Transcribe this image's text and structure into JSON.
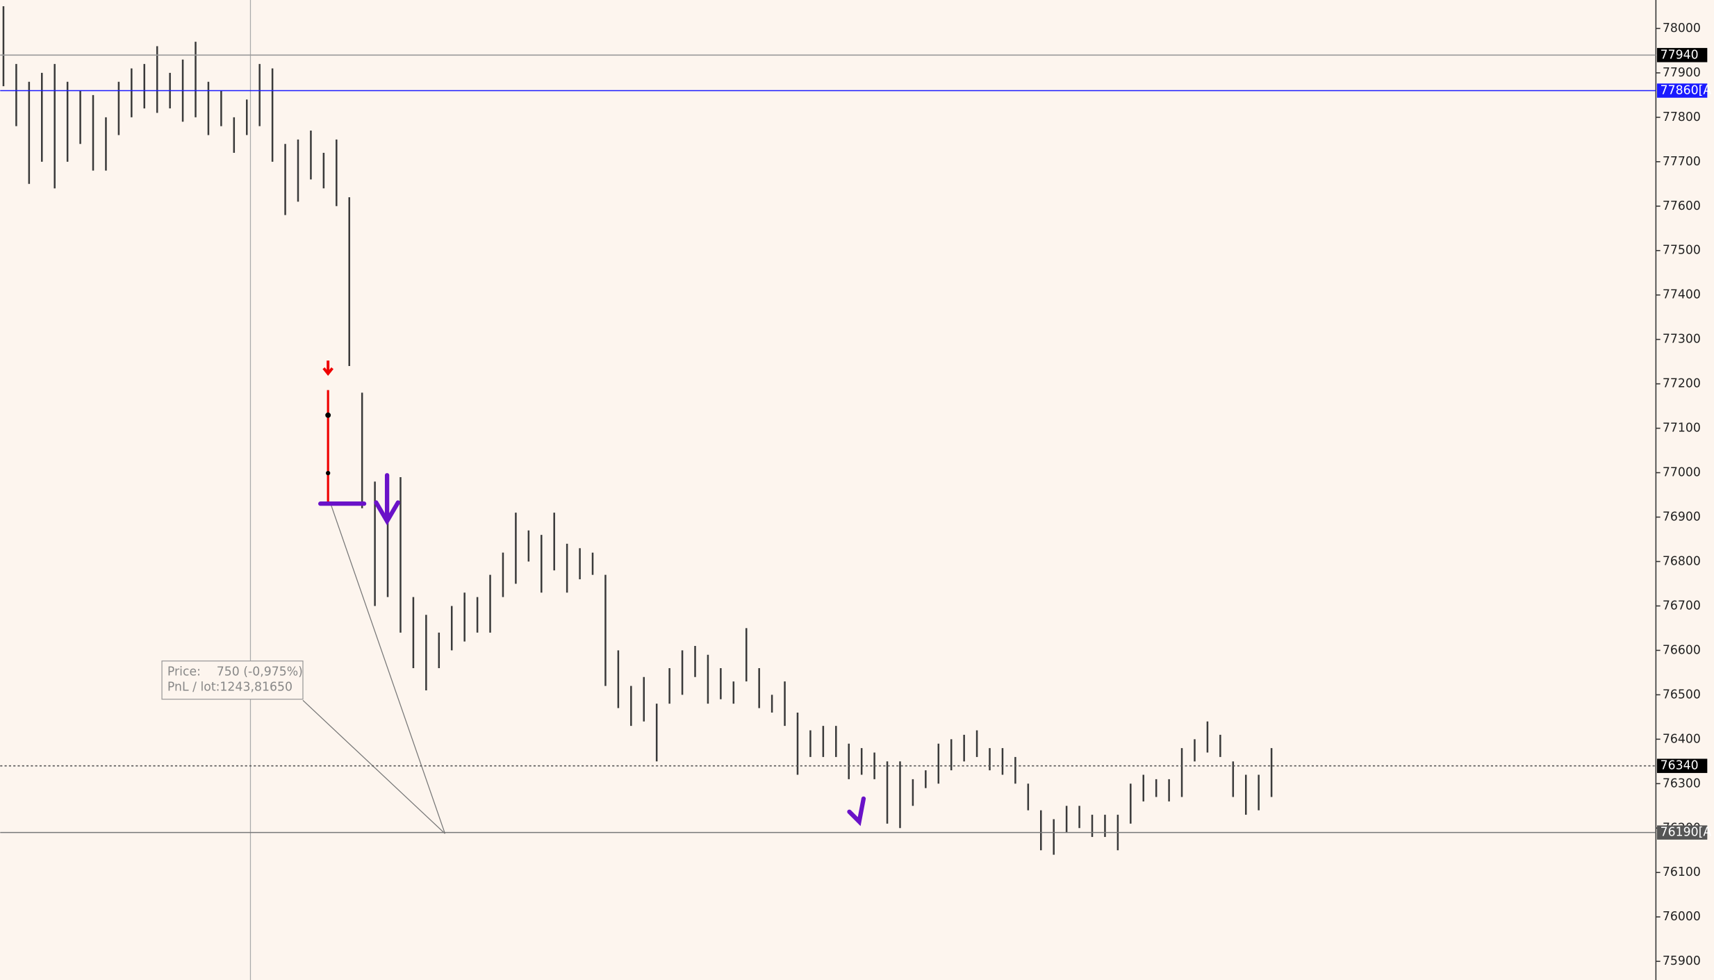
{
  "chart_data": {
    "type": "ohlc",
    "color": "#3a3a3a",
    "ylim": [
      75858,
      78064
    ],
    "yticks": [
      75900,
      76000,
      76100,
      76200,
      76300,
      76400,
      76500,
      76600,
      76700,
      76800,
      76900,
      77000,
      77100,
      77200,
      77300,
      77400,
      77500,
      77600,
      77700,
      77800,
      77900,
      78000
    ],
    "high": [
      78050,
      77920,
      77880,
      77900,
      77920,
      77880,
      77860,
      77850,
      77800,
      77880,
      77910,
      77920,
      77960,
      77900,
      77930,
      77970,
      77880,
      77860,
      77800,
      77840,
      77920,
      77910,
      77740,
      77750,
      77770,
      77720,
      77750,
      77620,
      77180,
      76980,
      76950,
      76990,
      76720,
      76680,
      76640,
      76700,
      76730,
      76720,
      76770,
      76820,
      76910,
      76870,
      76860,
      76910,
      76840,
      76830,
      76820,
      76770,
      76600,
      76520,
      76540,
      76480,
      76560,
      76600,
      76610,
      76590,
      76560,
      76530,
      76650,
      76560,
      76500,
      76530,
      76460,
      76420,
      76430,
      76430,
      76390,
      76380,
      76370,
      76350,
      76350,
      76310,
      76330,
      76390,
      76400,
      76410,
      76420,
      76380,
      76380,
      76360,
      76300,
      76240,
      76220,
      76250,
      76250,
      76230,
      76230,
      76230,
      76300,
      76320,
      76310,
      76310,
      76380,
      76400,
      76440,
      76410,
      76350,
      76320,
      76320,
      76380
    ],
    "low": [
      77870,
      77780,
      77650,
      77700,
      77640,
      77700,
      77740,
      77680,
      77680,
      77760,
      77800,
      77820,
      77810,
      77820,
      77790,
      77800,
      77760,
      77780,
      77720,
      77760,
      77780,
      77700,
      77580,
      77610,
      77660,
      77640,
      77600,
      77240,
      76920,
      76700,
      76720,
      76640,
      76560,
      76510,
      76560,
      76600,
      76620,
      76640,
      76640,
      76720,
      76750,
      76800,
      76730,
      76780,
      76730,
      76760,
      76770,
      76520,
      76470,
      76430,
      76440,
      76350,
      76480,
      76500,
      76540,
      76480,
      76490,
      76480,
      76530,
      76470,
      76460,
      76430,
      76320,
      76360,
      76360,
      76360,
      76310,
      76320,
      76310,
      76210,
      76200,
      76250,
      76290,
      76300,
      76330,
      76350,
      76360,
      76330,
      76320,
      76300,
      76240,
      76150,
      76140,
      76190,
      76200,
      76180,
      76180,
      76150,
      76210,
      76260,
      76270,
      76260,
      76270,
      76350,
      76370,
      76360,
      76270,
      76230,
      76240,
      76270
    ],
    "levels": [
      {
        "value": 77940,
        "label": "77940",
        "line_color": "#999999",
        "label_background": "#000000",
        "dashed": false
      },
      {
        "value": 77860,
        "label": "77860[A",
        "line_color": "#1a1aff",
        "label_background": "#1a1aff",
        "dashed": false
      },
      {
        "value": 76340,
        "label": "76340",
        "line_color": "#555555",
        "label_background": "#000000",
        "dashed": true
      },
      {
        "value": 76190,
        "label": "76190[A",
        "line_color": "#777777",
        "label_background": "#555555",
        "dashed": false
      }
    ],
    "tooltip": {
      "price_label": "Price:",
      "price_value": "750 (-0,975%)",
      "pnl_label": "PnL / lot:",
      "pnl_value": "1243,81650"
    }
  }
}
